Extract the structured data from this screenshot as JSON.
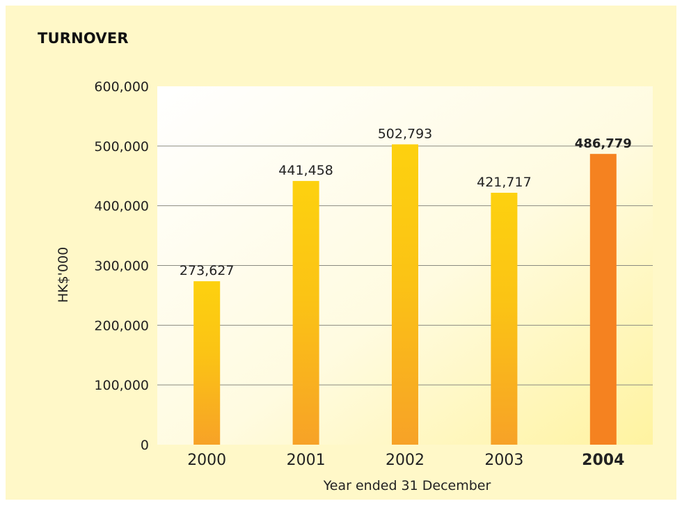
{
  "chart_data": {
    "type": "bar",
    "title": "TURNOVER",
    "ylabel": "HK$'000",
    "xlabel": "Year ended 31 December",
    "categories": [
      "2000",
      "2001",
      "2002",
      "2003",
      "2004"
    ],
    "values": [
      273627,
      441458,
      502793,
      421717,
      486779
    ],
    "value_labels": [
      "273,627",
      "441,458",
      "502,793",
      "421,717",
      "486,779"
    ],
    "highlight_index": 4,
    "ylim": [
      0,
      600000
    ],
    "yticks": [
      0,
      100000,
      200000,
      300000,
      400000,
      500000,
      600000
    ],
    "ytick_labels": [
      "0",
      "100,000",
      "200,000",
      "300,000",
      "400,000",
      "500,000",
      "600,000"
    ],
    "grid": true,
    "colors": {
      "bar_top": "#fdd10f",
      "bar_bottom": "#f7a227",
      "highlight_bar": "#f58220",
      "gridline": "#8a8a80",
      "panel_bg": "#fff8c8"
    }
  }
}
